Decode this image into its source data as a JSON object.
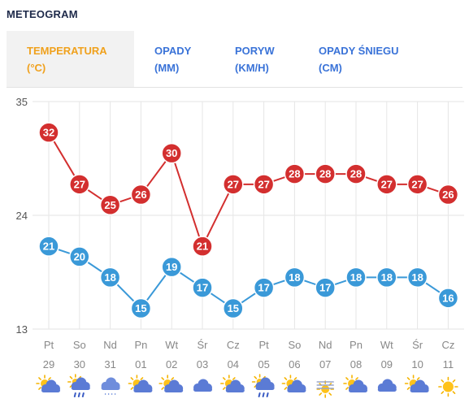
{
  "title": "METEOGRAM",
  "tabs": [
    {
      "line1": "TEMPERATURA",
      "line2": "(°C)",
      "active": true
    },
    {
      "line1": "OPADY",
      "line2": "(MM)",
      "active": false
    },
    {
      "line1": "PORYW",
      "line2": "(KM/H)",
      "active": false
    },
    {
      "line1": "OPADY ŚNIEGU",
      "line2": "(CM)",
      "active": false
    }
  ],
  "colors": {
    "max": "#d32f2f",
    "min": "#3a99d8",
    "active_tab": "#f0a11d",
    "tab": "#3a73d8"
  },
  "chart_data": {
    "type": "line",
    "ylim": [
      13,
      35
    ],
    "yticks": [
      "35",
      "24",
      "13"
    ],
    "days": [
      {
        "name": "Pt",
        "date": "29",
        "icon": "sun-cloud-icon"
      },
      {
        "name": "So",
        "date": "30",
        "icon": "rain-cloud-icon"
      },
      {
        "name": "Nd",
        "date": "31",
        "icon": "drizzle-cloud-icon"
      },
      {
        "name": "Pn",
        "date": "01",
        "icon": "sun-cloud-icon"
      },
      {
        "name": "Wt",
        "date": "02",
        "icon": "sun-cloud-icon"
      },
      {
        "name": "Śr",
        "date": "03",
        "icon": "cloud-icon"
      },
      {
        "name": "Cz",
        "date": "04",
        "icon": "sun-cloud-icon"
      },
      {
        "name": "Pt",
        "date": "05",
        "icon": "rain-cloud-icon"
      },
      {
        "name": "So",
        "date": "06",
        "icon": "sun-cloud-icon"
      },
      {
        "name": "Nd",
        "date": "07",
        "icon": "fog-sun-icon"
      },
      {
        "name": "Pn",
        "date": "08",
        "icon": "sun-cloud-icon"
      },
      {
        "name": "Wt",
        "date": "09",
        "icon": "cloud-icon"
      },
      {
        "name": "Śr",
        "date": "10",
        "icon": "sun-cloud-icon"
      },
      {
        "name": "Cz",
        "date": "11",
        "icon": "sun-icon"
      }
    ],
    "series": [
      {
        "key": "max",
        "values": [
          32,
          27,
          25,
          26,
          30,
          21,
          27,
          27,
          28,
          28,
          28,
          27,
          27,
          26
        ]
      },
      {
        "key": "min",
        "values": [
          21,
          20,
          18,
          15,
          19,
          17,
          15,
          17,
          18,
          17,
          18,
          18,
          18,
          16
        ]
      }
    ]
  }
}
